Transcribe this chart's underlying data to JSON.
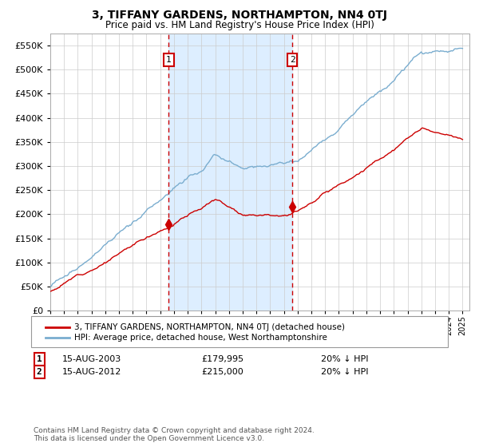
{
  "title": "3, TIFFANY GARDENS, NORTHAMPTON, NN4 0TJ",
  "subtitle": "Price paid vs. HM Land Registry's House Price Index (HPI)",
  "ytick_values": [
    0,
    50000,
    100000,
    150000,
    200000,
    250000,
    300000,
    350000,
    400000,
    450000,
    500000,
    550000
  ],
  "ylim": [
    0,
    575000
  ],
  "xlim_start": 1995.0,
  "xlim_end": 2025.5,
  "sale1_date": 2003.62,
  "sale1_price": 179995,
  "sale2_date": 2012.62,
  "sale2_price": 215000,
  "legend_line1": "3, TIFFANY GARDENS, NORTHAMPTON, NN4 0TJ (detached house)",
  "legend_line2": "HPI: Average price, detached house, West Northamptonshire",
  "annotation1_label": "1",
  "annotation1_text": "15-AUG-2003",
  "annotation1_price": "£179,995",
  "annotation1_hpi": "20% ↓ HPI",
  "annotation2_label": "2",
  "annotation2_text": "15-AUG-2012",
  "annotation2_price": "£215,000",
  "annotation2_hpi": "20% ↓ HPI",
  "footer": "Contains HM Land Registry data © Crown copyright and database right 2024.\nThis data is licensed under the Open Government Licence v3.0.",
  "line_color_property": "#cc0000",
  "line_color_hpi": "#7aadcf",
  "shade_color": "#ddeeff",
  "marker_color": "#cc0000",
  "vline_color": "#cc0000",
  "background_color": "#ffffff",
  "grid_color": "#cccccc"
}
